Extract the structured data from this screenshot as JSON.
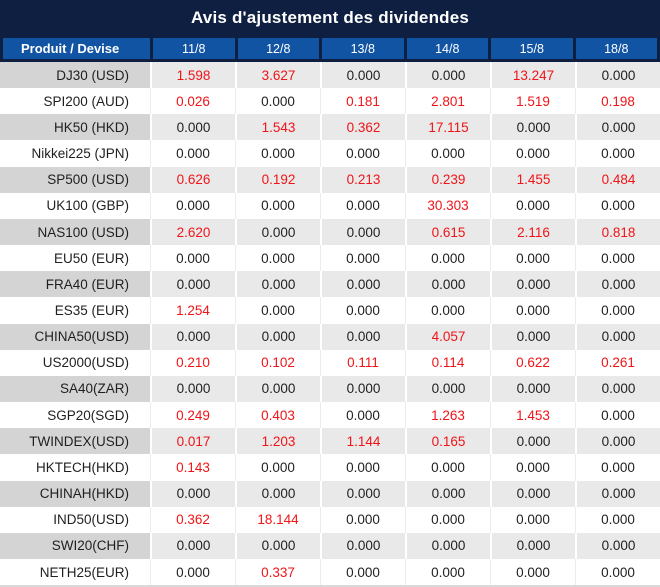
{
  "title": "Avis d'ajustement des dividendes",
  "table": {
    "product_header": "Produit / Devise",
    "date_headers": [
      "11/8",
      "12/8",
      "13/8",
      "14/8",
      "15/8",
      "18/8"
    ],
    "rows": [
      {
        "product": "DJ30 (USD)",
        "values": [
          "1.598",
          "3.627",
          "0.000",
          "0.000",
          "13.247",
          "0.000"
        ]
      },
      {
        "product": "SPI200 (AUD)",
        "values": [
          "0.026",
          "0.000",
          "0.181",
          "2.801",
          "1.519",
          "0.198"
        ]
      },
      {
        "product": "HK50 (HKD)",
        "values": [
          "0.000",
          "1.543",
          "0.362",
          "17.115",
          "0.000",
          "0.000"
        ]
      },
      {
        "product": "Nikkei225 (JPN)",
        "values": [
          "0.000",
          "0.000",
          "0.000",
          "0.000",
          "0.000",
          "0.000"
        ]
      },
      {
        "product": "SP500 (USD)",
        "values": [
          "0.626",
          "0.192",
          "0.213",
          "0.239",
          "1.455",
          "0.484"
        ]
      },
      {
        "product": "UK100 (GBP)",
        "values": [
          "0.000",
          "0.000",
          "0.000",
          "30.303",
          "0.000",
          "0.000"
        ]
      },
      {
        "product": "NAS100 (USD)",
        "values": [
          "2.620",
          "0.000",
          "0.000",
          "0.615",
          "2.116",
          "0.818"
        ]
      },
      {
        "product": "EU50 (EUR)",
        "values": [
          "0.000",
          "0.000",
          "0.000",
          "0.000",
          "0.000",
          "0.000"
        ]
      },
      {
        "product": "FRA40 (EUR)",
        "values": [
          "0.000",
          "0.000",
          "0.000",
          "0.000",
          "0.000",
          "0.000"
        ]
      },
      {
        "product": "ES35 (EUR)",
        "values": [
          "1.254",
          "0.000",
          "0.000",
          "0.000",
          "0.000",
          "0.000"
        ]
      },
      {
        "product": "CHINA50(USD)",
        "values": [
          "0.000",
          "0.000",
          "0.000",
          "4.057",
          "0.000",
          "0.000"
        ]
      },
      {
        "product": "US2000(USD)",
        "values": [
          "0.210",
          "0.102",
          "0.111",
          "0.114",
          "0.622",
          "0.261"
        ]
      },
      {
        "product": "SA40(ZAR)",
        "values": [
          "0.000",
          "0.000",
          "0.000",
          "0.000",
          "0.000",
          "0.000"
        ]
      },
      {
        "product": "SGP20(SGD)",
        "values": [
          "0.249",
          "0.403",
          "0.000",
          "1.263",
          "1.453",
          "0.000"
        ]
      },
      {
        "product": "TWINDEX(USD)",
        "values": [
          "0.017",
          "1.203",
          "1.144",
          "0.165",
          "0.000",
          "0.000"
        ]
      },
      {
        "product": "HKTECH(HKD)",
        "values": [
          "0.143",
          "0.000",
          "0.000",
          "0.000",
          "0.000",
          "0.000"
        ]
      },
      {
        "product": "CHINAH(HKD)",
        "values": [
          "0.000",
          "0.000",
          "0.000",
          "0.000",
          "0.000",
          "0.000"
        ]
      },
      {
        "product": "IND50(USD)",
        "values": [
          "0.362",
          "18.144",
          "0.000",
          "0.000",
          "0.000",
          "0.000"
        ]
      },
      {
        "product": "SWI20(CHF)",
        "values": [
          "0.000",
          "0.000",
          "0.000",
          "0.000",
          "0.000",
          "0.000"
        ]
      },
      {
        "product": "NETH25(EUR)",
        "values": [
          "0.000",
          "0.337",
          "0.000",
          "0.000",
          "0.000",
          "0.000"
        ]
      }
    ]
  },
  "colors": {
    "title_bg": "#0e1f42",
    "header_bg": "#1254a4",
    "header_text": "#ffffff",
    "highlight_value": "#f01418",
    "zero_value": "#1f1f1f",
    "row_gray_product": "#d4d4d4",
    "row_gray_value": "#e9e9e9",
    "row_white": "#ffffff",
    "bottom_border": "#d9d9d9"
  }
}
